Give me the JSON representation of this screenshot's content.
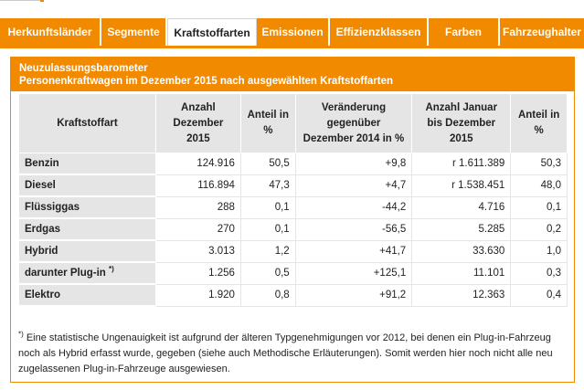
{
  "tabs": [
    {
      "label": "Herkunftsländer",
      "active": false
    },
    {
      "label": "Segmente",
      "active": false
    },
    {
      "label": "Kraftstoffarten",
      "active": true
    },
    {
      "label": "Emissionen",
      "active": false
    },
    {
      "label": "Effizienzklassen",
      "active": false
    },
    {
      "label": "Farben",
      "active": false
    },
    {
      "label": "Fahrzeughalter",
      "active": false
    }
  ],
  "panel": {
    "title_line1": "Neuzulassungsbarometer",
    "title_line2": "Personenkraftwagen im Dezember 2015 nach ausgewählten Kraftstoffarten"
  },
  "table": {
    "headers": [
      "Kraftstoffart",
      "Anzahl Dezember 2015",
      "Anteil in %",
      "Veränderung gegenüber Dezember 2014 in %",
      "Anzahl Januar bis Dezember 2015",
      "Anteil in %"
    ],
    "rows": [
      {
        "label": "Benzin",
        "sup": "",
        "c1": "124.916",
        "c2": "50,5",
        "c3": "+9,8",
        "c4": "r 1.611.389",
        "c5": "50,3"
      },
      {
        "label": "Diesel",
        "sup": "",
        "c1": "116.894",
        "c2": "47,3",
        "c3": "+4,7",
        "c4": "r 1.538.451",
        "c5": "48,0"
      },
      {
        "label": "Flüssiggas",
        "sup": "",
        "c1": "288",
        "c2": "0,1",
        "c3": "-44,2",
        "c4": "4.716",
        "c5": "0,1"
      },
      {
        "label": "Erdgas",
        "sup": "",
        "c1": "270",
        "c2": "0,1",
        "c3": "-56,5",
        "c4": "5.285",
        "c5": "0,2"
      },
      {
        "label": "Hybrid",
        "sup": "",
        "c1": "3.013",
        "c2": "1,2",
        "c3": "+41,7",
        "c4": "33.630",
        "c5": "1,0"
      },
      {
        "label": "darunter Plug-in ",
        "sup": "*)",
        "c1": "1.256",
        "c2": "0,5",
        "c3": "+125,1",
        "c4": "11.101",
        "c5": "0,3"
      },
      {
        "label": "Elektro",
        "sup": "",
        "c1": "1.920",
        "c2": "0,8",
        "c3": "+91,2",
        "c4": "12.363",
        "c5": "0,4"
      }
    ]
  },
  "footnote": {
    "marker": "*)",
    "text": " Eine statistische Ungenauigkeit ist aufgrund der älteren Typgenehmigungen vor 2012, bei denen ein Plug-in-Fahrzeug noch als Hybrid erfasst wurde, gegeben (siehe auch Methodische Erläuterungen). Somit werden hier noch nicht alle neu zugelassenen Plug-in-Fahrzeuge ausgewiesen."
  },
  "colors": {
    "accent": "#f28a00",
    "header_bg": "#e5e5e5"
  }
}
